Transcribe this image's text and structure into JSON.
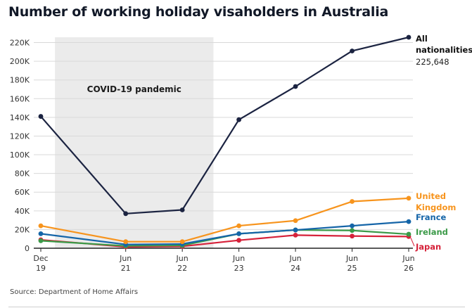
{
  "title": "Number of working holiday visaholders in Australia",
  "source": "Source: Department of Home Affairs",
  "chart_data": {
    "type": "line",
    "title": "Number of working holiday visaholders in Australia",
    "x_labels": [
      [
        "Dec",
        "19"
      ],
      [
        "Jun",
        "21"
      ],
      [
        "Jun",
        "22"
      ],
      [
        "Jun",
        "23"
      ],
      [
        "Jun",
        "24"
      ],
      [
        "Jun",
        "25"
      ],
      [
        "Jun",
        "26"
      ]
    ],
    "x_positions": [
      0,
      1.5,
      2.5,
      3.5,
      4.5,
      5.5,
      6.5
    ],
    "y_ticks": [
      0,
      20000,
      40000,
      60000,
      80000,
      100000,
      120000,
      140000,
      160000,
      180000,
      200000,
      220000
    ],
    "y_tick_labels": [
      "0",
      "20K",
      "40K",
      "60K",
      "80K",
      "100K",
      "120K",
      "140K",
      "160K",
      "180K",
      "200K",
      "220K"
    ],
    "ylim": [
      0,
      225648
    ],
    "shaded_region": {
      "label": "COVID-19 pandemic",
      "x_start": 0.25,
      "x_end": 3.05
    },
    "series": [
      {
        "name": "All nationalities",
        "color": "#1b2341",
        "values": [
          141000,
          37000,
          41000,
          137500,
          173000,
          211000,
          225648
        ],
        "label_lines": [
          "All",
          "nationalities"
        ],
        "value_label": "225,648"
      },
      {
        "name": "United Kingdom",
        "color": "#f7941d",
        "values": [
          24000,
          7000,
          7000,
          24000,
          29500,
          50000,
          53500
        ],
        "label_lines": [
          "United",
          "Kingdom"
        ]
      },
      {
        "name": "France",
        "color": "#1565a8",
        "values": [
          15500,
          4000,
          4500,
          15500,
          19500,
          24000,
          28500
        ],
        "label_lines": [
          "France"
        ]
      },
      {
        "name": "Ireland",
        "color": "#3b9a48",
        "values": [
          8000,
          2500,
          3000,
          15500,
          19500,
          19000,
          15000
        ],
        "label_lines": [
          "Ireland"
        ]
      },
      {
        "name": "Japan",
        "color": "#d6223a",
        "values": [
          9000,
          1500,
          2000,
          8500,
          14000,
          13000,
          12500
        ],
        "label_lines": [
          "Japan"
        ]
      }
    ]
  }
}
